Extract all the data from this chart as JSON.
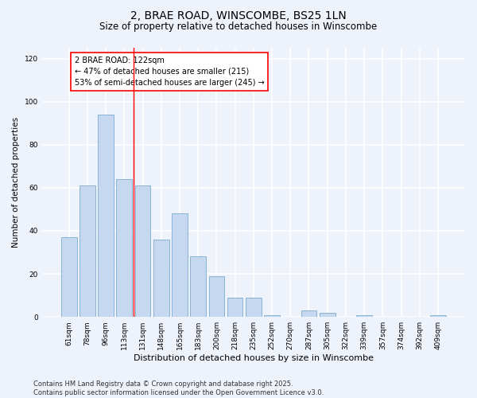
{
  "title": "2, BRAE ROAD, WINSCOMBE, BS25 1LN",
  "subtitle": "Size of property relative to detached houses in Winscombe",
  "xlabel": "Distribution of detached houses by size in Winscombe",
  "ylabel": "Number of detached properties",
  "categories": [
    "61sqm",
    "78sqm",
    "96sqm",
    "113sqm",
    "131sqm",
    "148sqm",
    "165sqm",
    "183sqm",
    "200sqm",
    "218sqm",
    "235sqm",
    "252sqm",
    "270sqm",
    "287sqm",
    "305sqm",
    "322sqm",
    "339sqm",
    "357sqm",
    "374sqm",
    "392sqm",
    "409sqm"
  ],
  "values": [
    37,
    61,
    94,
    64,
    61,
    36,
    48,
    28,
    19,
    9,
    9,
    1,
    0,
    3,
    2,
    0,
    1,
    0,
    0,
    0,
    1
  ],
  "bar_color": "#c5d8f0",
  "bar_edge_color": "#7aabce",
  "vline_x_index": 3.5,
  "vline_color": "red",
  "annotation_line1": "2 BRAE ROAD: 122sqm",
  "annotation_line2": "← 47% of detached houses are smaller (215)",
  "annotation_line3": "53% of semi-detached houses are larger (245) →",
  "annotation_box_color": "white",
  "annotation_box_edge_color": "red",
  "ylim": [
    0,
    125
  ],
  "yticks": [
    0,
    20,
    40,
    60,
    80,
    100,
    120
  ],
  "background_color": "#eef2fb",
  "grid_color": "white",
  "footer_text": "Contains HM Land Registry data © Crown copyright and database right 2025.\nContains public sector information licensed under the Open Government Licence v3.0.",
  "title_fontsize": 10,
  "subtitle_fontsize": 8.5,
  "xlabel_fontsize": 8,
  "ylabel_fontsize": 7.5,
  "tick_fontsize": 6.5,
  "annotation_fontsize": 7,
  "footer_fontsize": 6
}
